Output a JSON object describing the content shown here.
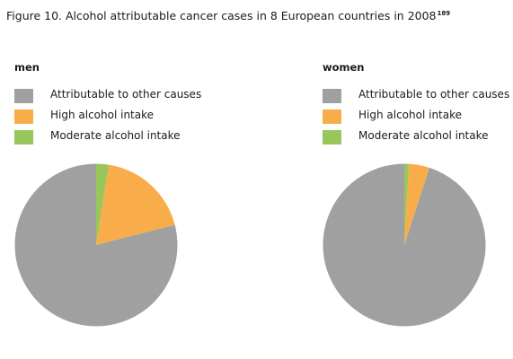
{
  "figure": {
    "title": "Figure 10. Alcohol attributable cancer cases in 8 European countries in 2008",
    "footnote": "189"
  },
  "colors": {
    "other_causes": "#a0a0a0",
    "high_alcohol": "#f8ad4a",
    "moderate_alcohol": "#97c75a"
  },
  "chart_data": [
    {
      "type": "pie",
      "title": "men",
      "legend": [
        "Attributable to other causes",
        "High alcohol intake",
        "Moderate alcohol intake"
      ],
      "slices": [
        {
          "label": "Moderate alcohol intake",
          "value": 2.5,
          "color": "#97c75a"
        },
        {
          "label": "High alcohol intake",
          "value": 18.5,
          "color": "#f8ad4a"
        },
        {
          "label": "Attributable to other causes",
          "value": 79,
          "color": "#a0a0a0"
        }
      ]
    },
    {
      "type": "pie",
      "title": "women",
      "legend": [
        "Attributable to other causes",
        "High alcohol intake",
        "Moderate alcohol intake"
      ],
      "slices": [
        {
          "label": "Moderate alcohol intake",
          "value": 0.9,
          "color": "#97c75a"
        },
        {
          "label": "High alcohol intake",
          "value": 4.1,
          "color": "#f8ad4a"
        },
        {
          "label": "Attributable to other causes",
          "value": 95,
          "color": "#a0a0a0"
        }
      ]
    }
  ]
}
